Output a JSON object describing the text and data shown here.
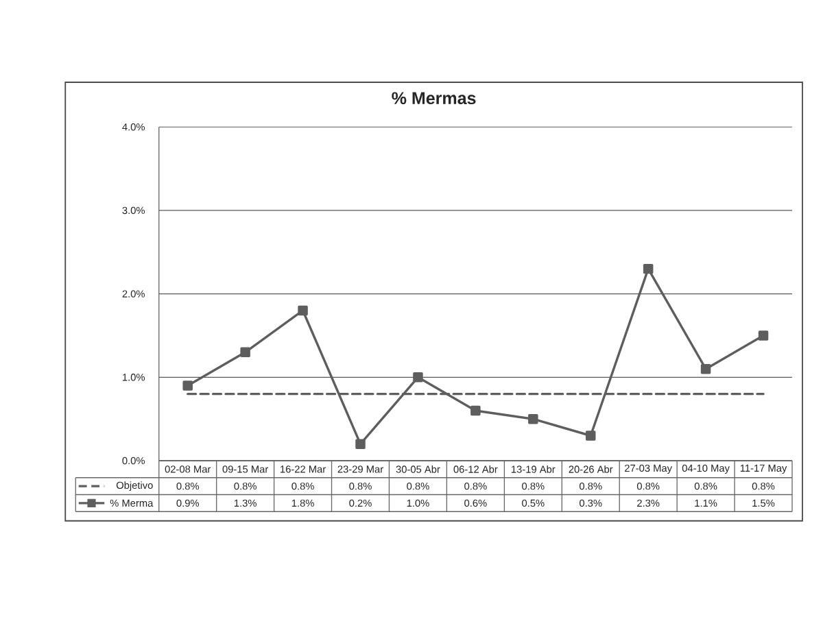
{
  "chart_data": {
    "type": "line",
    "title": "% Mermas",
    "categories": [
      "02-08 Mar",
      "09-15 Mar",
      "16-22 Mar",
      "23-29 Mar",
      "30-05 Abr",
      "06-12 Abr",
      "13-19 Abr",
      "20-26 Abr",
      "27-03 May",
      "04-10 May",
      "11-17 May"
    ],
    "series": [
      {
        "name": "Objetivo",
        "color": "#5e5e5e",
        "line_style": "dashed",
        "marker": "none",
        "values": [
          0.8,
          0.8,
          0.8,
          0.8,
          0.8,
          0.8,
          0.8,
          0.8,
          0.8,
          0.8,
          0.8
        ],
        "value_labels": [
          "0.8%",
          "0.8%",
          "0.8%",
          "0.8%",
          "0.8%",
          "0.8%",
          "0.8%",
          "0.8%",
          "0.8%",
          "0.8%",
          "0.8%"
        ]
      },
      {
        "name": "% Merma",
        "color": "#5e5e5e",
        "line_style": "solid",
        "marker": "square",
        "values": [
          0.9,
          1.3,
          1.8,
          0.2,
          1.0,
          0.6,
          0.5,
          0.3,
          2.3,
          1.1,
          1.5
        ],
        "value_labels": [
          "0.9%",
          "1.3%",
          "1.8%",
          "0.2%",
          "1.0%",
          "0.6%",
          "0.5%",
          "0.3%",
          "2.3%",
          "1.1%",
          "1.5%"
        ]
      }
    ],
    "ylim": [
      0,
      4
    ],
    "yticks": [
      {
        "value": 0,
        "label": "0.0%"
      },
      {
        "value": 1,
        "label": "1.0%"
      },
      {
        "value": 2,
        "label": "2.0%"
      },
      {
        "value": 3,
        "label": "3.0%"
      },
      {
        "value": 4,
        "label": "4.0%"
      }
    ],
    "grid": "y",
    "legend": "bottom"
  }
}
